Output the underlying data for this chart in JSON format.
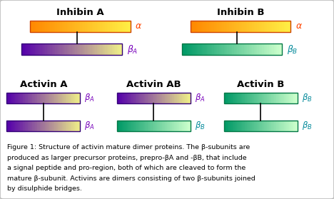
{
  "background_color": "#ffffff",
  "border_color": "#bbbbbb",
  "inhibin_a_label": "Inhibin A",
  "inhibin_b_label": "Inhibin B",
  "activin_a_label": "Activin A",
  "activin_ab_label": "Activin AB",
  "activin_b_label": "Activin B",
  "alpha_label": "α",
  "label_alpha_color": "#ff4400",
  "label_betaA_color": "#7700bb",
  "label_betaB_color": "#008899",
  "alpha_grad_left": "#ff8800",
  "alpha_grad_right": "#ffee44",
  "alpha_border": "#cc4400",
  "betaA_grad_left": "#5500aa",
  "betaA_grad_right": "#eeee88",
  "betaA_border": "#330077",
  "betaB_grad_left": "#009966",
  "betaB_grad_right": "#ccffcc",
  "betaB_border": "#007744",
  "caption_lines": [
    "Figure 1: Structure of activin mature dimer proteins. The β-subunits are",
    "produced as larger precursor proteins, prepro-βA and -βB, that include",
    "a signal peptide and pro-region, both of which are cleaved to form the",
    "mature β-subunit. Activins are dimers consisting of two β-subunits joined",
    "by disulphide bridges."
  ]
}
